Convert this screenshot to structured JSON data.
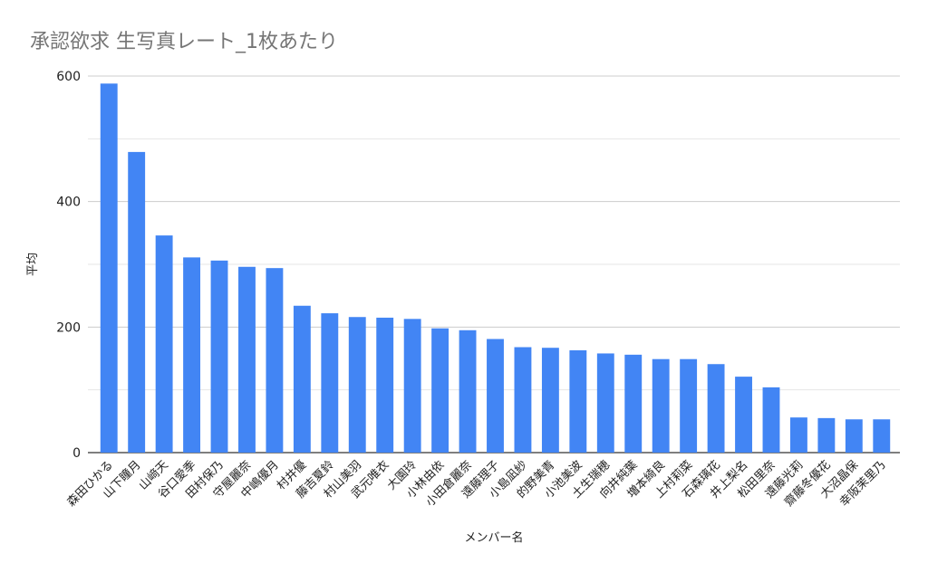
{
  "chart_data": {
    "type": "bar",
    "title": "承認欲求 生写真レート_1枚あたり",
    "xlabel": "メンバー名",
    "ylabel": "平均",
    "ylim": [
      0,
      600
    ],
    "yticks": [
      0,
      200,
      400,
      600
    ],
    "grid": true,
    "legend": "none",
    "bar_color": "#4285F4",
    "categories": [
      "森田ひかる",
      "山下瞳月",
      "山﨑天",
      "谷口愛季",
      "田村保乃",
      "守屋麗奈",
      "中嶋優月",
      "村井優",
      "藤吉夏鈴",
      "村山美羽",
      "武元唯衣",
      "大園玲",
      "小林由依",
      "小田倉麗奈",
      "遠藤理子",
      "小島凪紗",
      "的野美青",
      "小池美波",
      "土生瑞穂",
      "向井純葉",
      "増本綺良",
      "上村莉菜",
      "石森璃花",
      "井上梨名",
      "松田里奈",
      "遠藤光莉",
      "齋藤冬優花",
      "大沼晶保",
      "幸阪茉里乃"
    ],
    "values": [
      588,
      479,
      346,
      311,
      306,
      296,
      294,
      234,
      222,
      216,
      215,
      213,
      198,
      195,
      181,
      168,
      167,
      163,
      158,
      156,
      149,
      149,
      141,
      121,
      104,
      56,
      55,
      53,
      53
    ]
  }
}
